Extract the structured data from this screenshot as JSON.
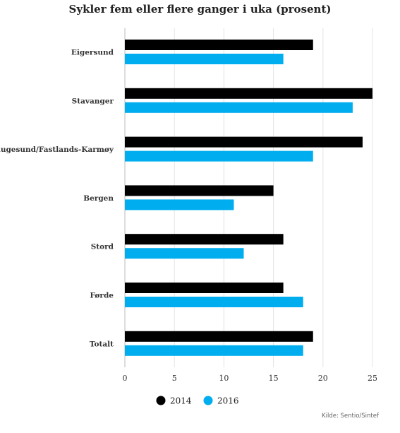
{
  "chart_data": {
    "type": "bar",
    "orientation": "horizontal",
    "title": "Sykler fem eller flere ganger i uka (prosent)",
    "categories": [
      "Eigersund",
      "Stavanger",
      "Haugesund/Fastlands-Karmøy",
      "Bergen",
      "Stord",
      "Førde",
      "Totalt"
    ],
    "series": [
      {
        "name": "2014",
        "color": "#000000",
        "values": [
          19,
          25,
          24,
          15,
          16,
          16,
          19
        ]
      },
      {
        "name": "2016",
        "color": "#00aeef",
        "values": [
          16,
          23,
          19,
          11,
          12,
          18,
          18
        ]
      }
    ],
    "xlim": [
      0,
      25
    ],
    "xticks": [
      0,
      5,
      10,
      15,
      20,
      25
    ],
    "grid": true,
    "legend": "bottom",
    "source": "Kilde: Sentio/Sintef"
  }
}
